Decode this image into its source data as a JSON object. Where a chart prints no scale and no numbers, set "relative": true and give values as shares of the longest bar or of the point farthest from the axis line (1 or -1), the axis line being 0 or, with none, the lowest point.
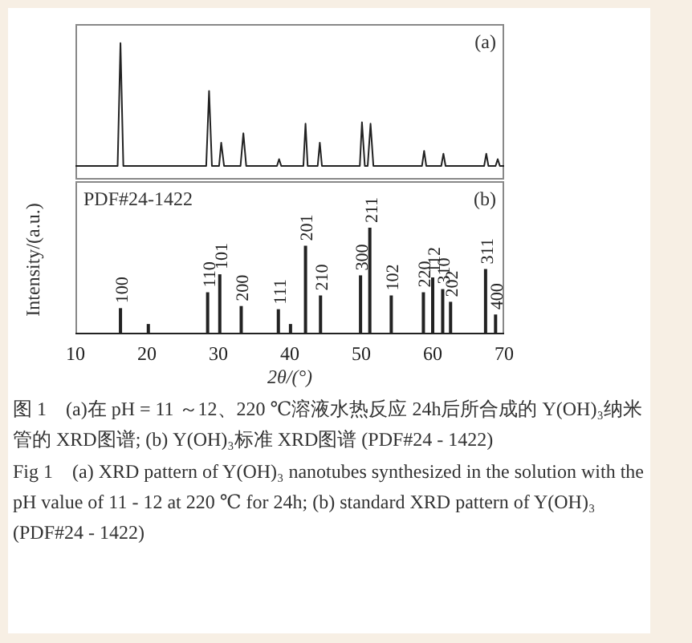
{
  "chart_data": [
    {
      "type": "line",
      "relative": true,
      "ylabel": "Intensity/(a.u.)",
      "xlim": [
        10,
        70
      ],
      "xticks": [
        10,
        20,
        30,
        40,
        50,
        60,
        70
      ],
      "tick_labels": false,
      "marker": "none",
      "line_style": "solid",
      "annotations": [
        "(a)"
      ],
      "series": [
        {
          "color": "#222222",
          "x": [
            10,
            15.9,
            16.3,
            16.7,
            22,
            28.3,
            28.7,
            29.1,
            30.1,
            30.4,
            30.8,
            33.1,
            33.5,
            33.9,
            38.2,
            38.5,
            38.8,
            41.9,
            42.2,
            42.5,
            43.9,
            44.2,
            44.5,
            49.8,
            50.1,
            50.5,
            50.9,
            51.3,
            51.7,
            58.5,
            58.8,
            59.1,
            61.2,
            61.5,
            61.8,
            67.2,
            67.5,
            67.8,
            68.8,
            69.1,
            69.4,
            70
          ],
          "values": [
            0.1,
            0.1,
            1,
            0.1,
            0.1,
            0.1,
            0.65,
            0.1,
            0.1,
            0.27,
            0.1,
            0.1,
            0.34,
            0.1,
            0.1,
            0.15,
            0.1,
            0.1,
            0.41,
            0.1,
            0.1,
            0.27,
            0.1,
            0.1,
            0.42,
            0.1,
            0.1,
            0.41,
            0.1,
            0.1,
            0.21,
            0.1,
            0.1,
            0.19,
            0.1,
            0.1,
            0.19,
            0.1,
            0.1,
            0.15,
            0.1,
            0.1
          ]
        }
      ]
    },
    {
      "type": "bar",
      "relative": true,
      "xlabel": "2θ/(°)",
      "xlim": [
        10,
        70
      ],
      "xticks": [
        10,
        20,
        30,
        40,
        50,
        60,
        70
      ],
      "tick_labels": "x",
      "annotations": [
        "PDF#24-1422",
        "(b)",
        "图 1　(a)在 pH = 11 ～12、220 ℃溶液水热反应 24h后所合成的 Y(OH)₃纳米管的 XRD图谱; (b) Y(OH)₃标准 XRD图谱 (PDF#24 - 1422)",
        "Fig 1　(a) XRD pattern of Y(OH)₃ nanotubes synthesized in the solution with the pH value of 11 - 12 at 220 ℃ for 24h; (b) standard XRD pattern of Y(OH)₃ (PDF#24 - 1422)",
        {
          "text": "100",
          "x": 16.4,
          "y": 0.24
        },
        {
          "text": "110",
          "x": 28.6,
          "y": 0.39
        },
        {
          "text": "101",
          "x": 30.3,
          "y": 0.56
        },
        {
          "text": "200",
          "x": 33.3,
          "y": 0.26
        },
        {
          "text": "111",
          "x": 38.5,
          "y": 0.23
        },
        {
          "text": "201",
          "x": 42.3,
          "y": 0.83
        },
        {
          "text": "210",
          "x": 44.4,
          "y": 0.36
        },
        {
          "text": "300",
          "x": 50.0,
          "y": 0.55
        },
        {
          "text": "211",
          "x": 51.3,
          "y": 1
        },
        {
          "text": "102",
          "x": 54.3,
          "y": 0.36
        },
        {
          "text": "220",
          "x": 58.8,
          "y": 0.39
        },
        {
          "text": "112",
          "x": 60.1,
          "y": 0.53
        },
        {
          "text": "310",
          "x": 61.5,
          "y": 0.42
        },
        {
          "text": "202",
          "x": 62.6,
          "y": 0.3
        },
        {
          "text": "311",
          "x": 67.5,
          "y": 0.61
        },
        {
          "text": "400",
          "x": 68.9,
          "y": 0.18
        }
      ],
      "series": [
        {
          "color": "#222222",
          "x": [
            16.4,
            20.3,
            28.6,
            30.3,
            33.3,
            38.5,
            40.2,
            42.3,
            44.4,
            50.0,
            51.3,
            54.3,
            58.8,
            60.1,
            61.5,
            62.6,
            67.5,
            68.9
          ],
          "values": [
            0.24,
            0.09,
            0.39,
            0.56,
            0.26,
            0.23,
            0.09,
            0.83,
            0.36,
            0.55,
            1,
            0.36,
            0.39,
            0.53,
            0.42,
            0.3,
            0.61,
            0.18
          ]
        }
      ]
    }
  ]
}
